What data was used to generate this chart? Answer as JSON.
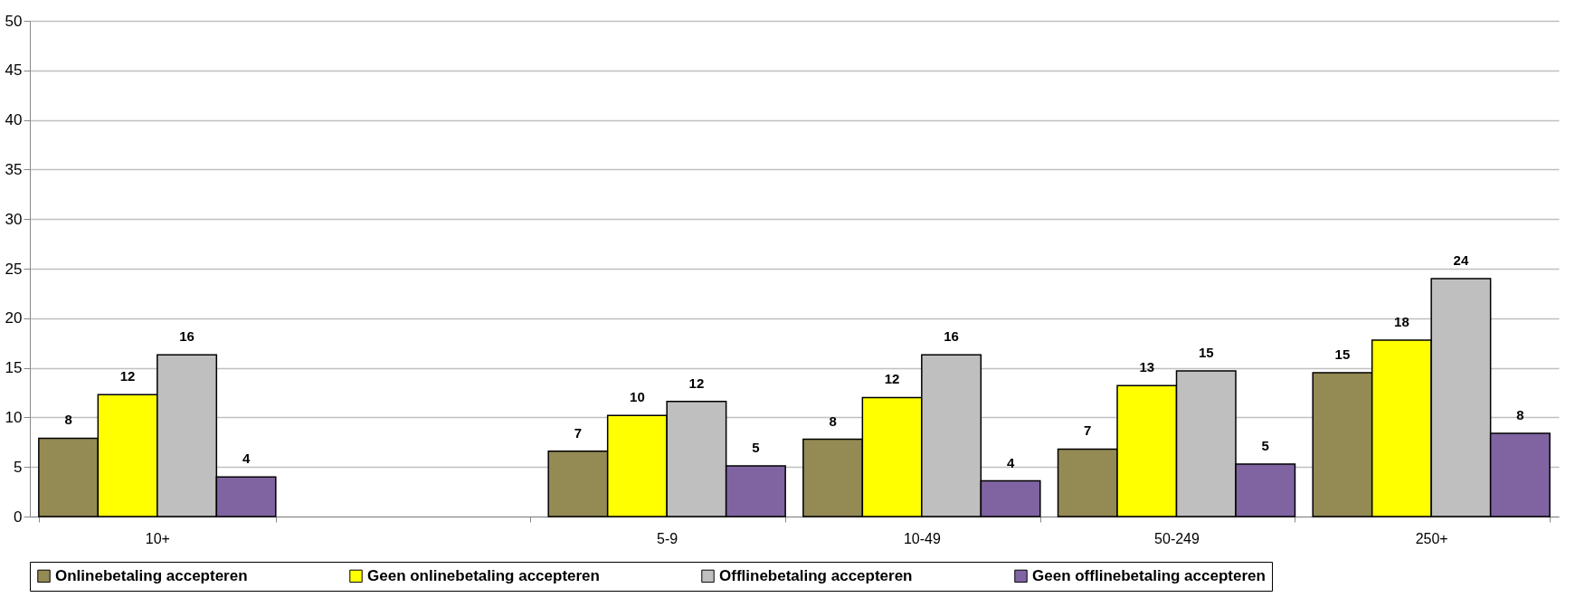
{
  "chart_data": {
    "type": "bar",
    "categories": [
      "10+",
      null,
      "5-9",
      "10-49",
      "50-249",
      "250+"
    ],
    "series": [
      {
        "name": "Onlinebetaling accepteren",
        "color": "#948a54",
        "values": [
          7.9,
          null,
          6.6,
          7.8,
          6.8,
          14.5
        ],
        "value_labels": [
          "8",
          null,
          "7",
          "8",
          "7",
          "15"
        ]
      },
      {
        "name": "Geen onlinebetaling accepteren",
        "color": "#ffff00",
        "values": [
          12.3,
          null,
          10.2,
          12.0,
          13.2,
          17.8
        ],
        "value_labels": [
          "12",
          null,
          "10",
          "12",
          "13",
          "18"
        ]
      },
      {
        "name": "Offlinebetaling accepteren",
        "color": "#bfbfbf",
        "values": [
          16.3,
          null,
          11.6,
          16.3,
          14.7,
          24.0
        ],
        "value_labels": [
          "16",
          null,
          "12",
          "16",
          "15",
          "24"
        ]
      },
      {
        "name": "Geen offlinebetaling accepteren",
        "color": "#8064a2",
        "values": [
          4.0,
          null,
          5.1,
          3.6,
          5.3,
          8.4
        ],
        "value_labels": [
          "4",
          null,
          "5",
          "4",
          "5",
          "8"
        ]
      }
    ],
    "ylim": [
      0,
      50
    ],
    "yticks": [
      0,
      5,
      10,
      15,
      20,
      25,
      30,
      35,
      40,
      45,
      50
    ],
    "grid": "y",
    "legend": "bottom"
  }
}
